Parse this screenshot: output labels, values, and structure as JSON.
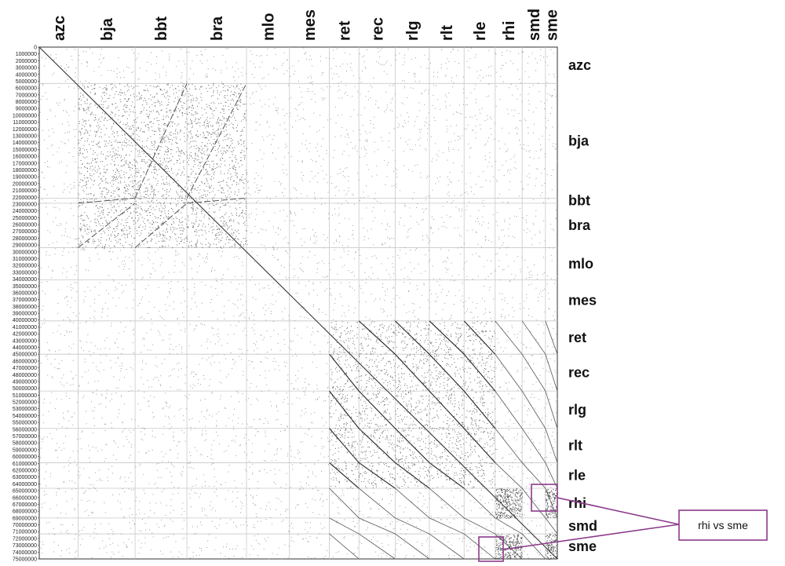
{
  "chart_data": {
    "type": "scatter",
    "genomes": [
      "azc",
      "bja",
      "bbt",
      "bra",
      "mlo",
      "mes",
      "ret",
      "rec",
      "rlg",
      "rlt",
      "rle",
      "rhi",
      "smd",
      "sme"
    ],
    "y_ticks": [
      "0",
      "1000000",
      "2000000",
      "3000000",
      "4000000",
      "5000000",
      "6000000",
      "7000000",
      "8000000",
      "9000000",
      "10000000",
      "11000000",
      "12000000",
      "13000000",
      "14000000",
      "15000000",
      "16000000",
      "17000000",
      "18000000",
      "19000000",
      "20000000",
      "21000000",
      "22000000",
      "23000000",
      "24000000",
      "25000000",
      "26000000",
      "27000000",
      "28000000",
      "29000000",
      "30000000",
      "31000000",
      "32000000",
      "33000000",
      "34000000",
      "35000000",
      "36000000",
      "37000000",
      "38000000",
      "39000000",
      "40000000",
      "41000000",
      "42000000",
      "43000000",
      "44000000",
      "45000000",
      "46000000",
      "47000000",
      "48000000",
      "49000000",
      "50000000",
      "51000000",
      "52000000",
      "53000000",
      "54000000",
      "55000000",
      "56000000",
      "57000000",
      "58000000",
      "59000000",
      "60000000",
      "61000000",
      "62000000",
      "63000000",
      "64000000",
      "65000000",
      "66000000",
      "67000000",
      "68000000",
      "69000000",
      "70000000",
      "71000000",
      "72000000",
      "73000000",
      "74000000",
      "75000000"
    ],
    "axis_range": [
      0,
      75000000
    ],
    "grid": true,
    "callout": {
      "text": "rhi vs sme",
      "color": "#8b3a8b"
    }
  }
}
